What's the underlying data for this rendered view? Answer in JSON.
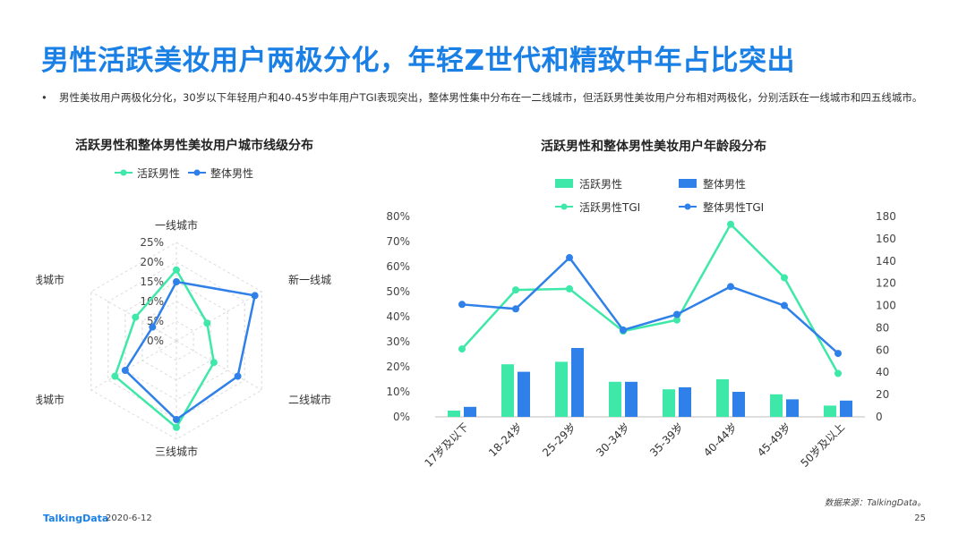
{
  "title": "男性活跃美妆用户两极分化，年轻Z世代和精致中年占比突出",
  "bullet": "男性美妆用户两极化分化，30岁以下年轻用户和40-45岁中年用户TGI表现突出，整体男性集中分布在一二线城市，但活跃男性美妆用户分布相对两极化，分别活跃在一线城市和四五线城市。",
  "bullet_marker": "•",
  "colors": {
    "active": "#3ee8a8",
    "overall": "#2f80e8",
    "title": "#1a80e6"
  },
  "chart_data": [
    {
      "type": "radar",
      "title": "活跃男性和整体男性美妆用户城市线级分布",
      "categories": [
        "一线城市",
        "新一线城市",
        "二线城市",
        "三线城市",
        "四线城市",
        "五线城市"
      ],
      "axis_ticks": [
        "25%",
        "20%",
        "15%",
        "10%",
        "5%",
        "0%"
      ],
      "rmax": 25,
      "series": [
        {
          "name": "活跃男性",
          "values": [
            18,
            9,
            11,
            22,
            18,
            12
          ]
        },
        {
          "name": "整体男性",
          "values": [
            15,
            23,
            18,
            20,
            15,
            7
          ]
        }
      ]
    },
    {
      "type": "bar+line",
      "title": "活跃男性和整体男性美妆用户年龄段分布",
      "categories": [
        "17岁及以下",
        "18-24岁",
        "25-29岁",
        "30-34岁",
        "35-39岁",
        "40-44岁",
        "45-49岁",
        "50岁及以上"
      ],
      "y_left_ticks": [
        "0%",
        "10%",
        "20%",
        "30%",
        "40%",
        "50%",
        "60%",
        "70%",
        "80%"
      ],
      "y_right_ticks": [
        "0",
        "20",
        "40",
        "60",
        "80",
        "100",
        "120",
        "140",
        "160",
        "180"
      ],
      "ylim_left": [
        0,
        80
      ],
      "ylim_right": [
        0,
        180
      ],
      "bar_series": [
        {
          "name": "活跃男性",
          "values": [
            2.5,
            21,
            22,
            14,
            11,
            15,
            9,
            4.5
          ]
        },
        {
          "name": "整体男性",
          "values": [
            4,
            18,
            27.5,
            14,
            11.8,
            10,
            7,
            6.5
          ]
        }
      ],
      "line_series": [
        {
          "name": "活跃男性TGI",
          "values": [
            61,
            114,
            115,
            77,
            87,
            173,
            125,
            39
          ]
        },
        {
          "name": "整体男性TGI",
          "values": [
            101,
            97,
            143,
            78,
            92,
            117,
            100,
            57
          ]
        }
      ]
    }
  ],
  "footer": {
    "logo": "TalkingData",
    "date": "2020-6-12",
    "page": "25",
    "source": "数据来源：TalkingData。"
  }
}
